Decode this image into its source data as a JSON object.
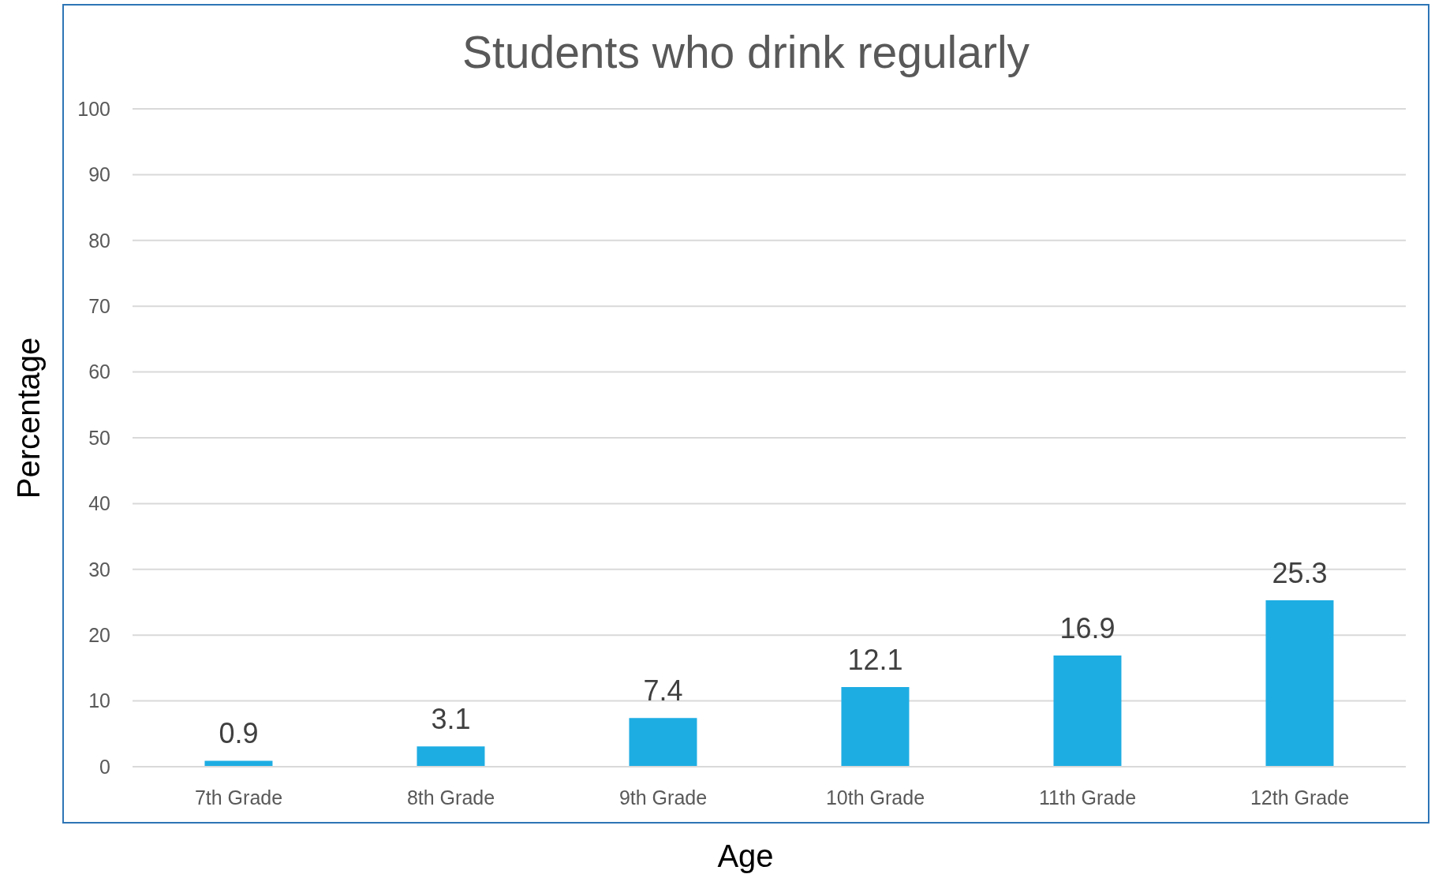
{
  "chart_data": {
    "type": "bar",
    "title": "Students who drink regularly",
    "xlabel": "Age",
    "ylabel": "Percentage",
    "categories": [
      "7th Grade",
      "8th Grade",
      "9th Grade",
      "10th Grade",
      "11th Grade",
      "12th Grade"
    ],
    "values": [
      0.9,
      3.1,
      7.4,
      12.1,
      16.9,
      25.3
    ],
    "color": "#1eade3",
    "ylim": [
      0,
      100
    ],
    "yticks": [
      0,
      10,
      20,
      30,
      40,
      50,
      60,
      70,
      80,
      90,
      100
    ],
    "grid": "y",
    "data_labels": true
  }
}
